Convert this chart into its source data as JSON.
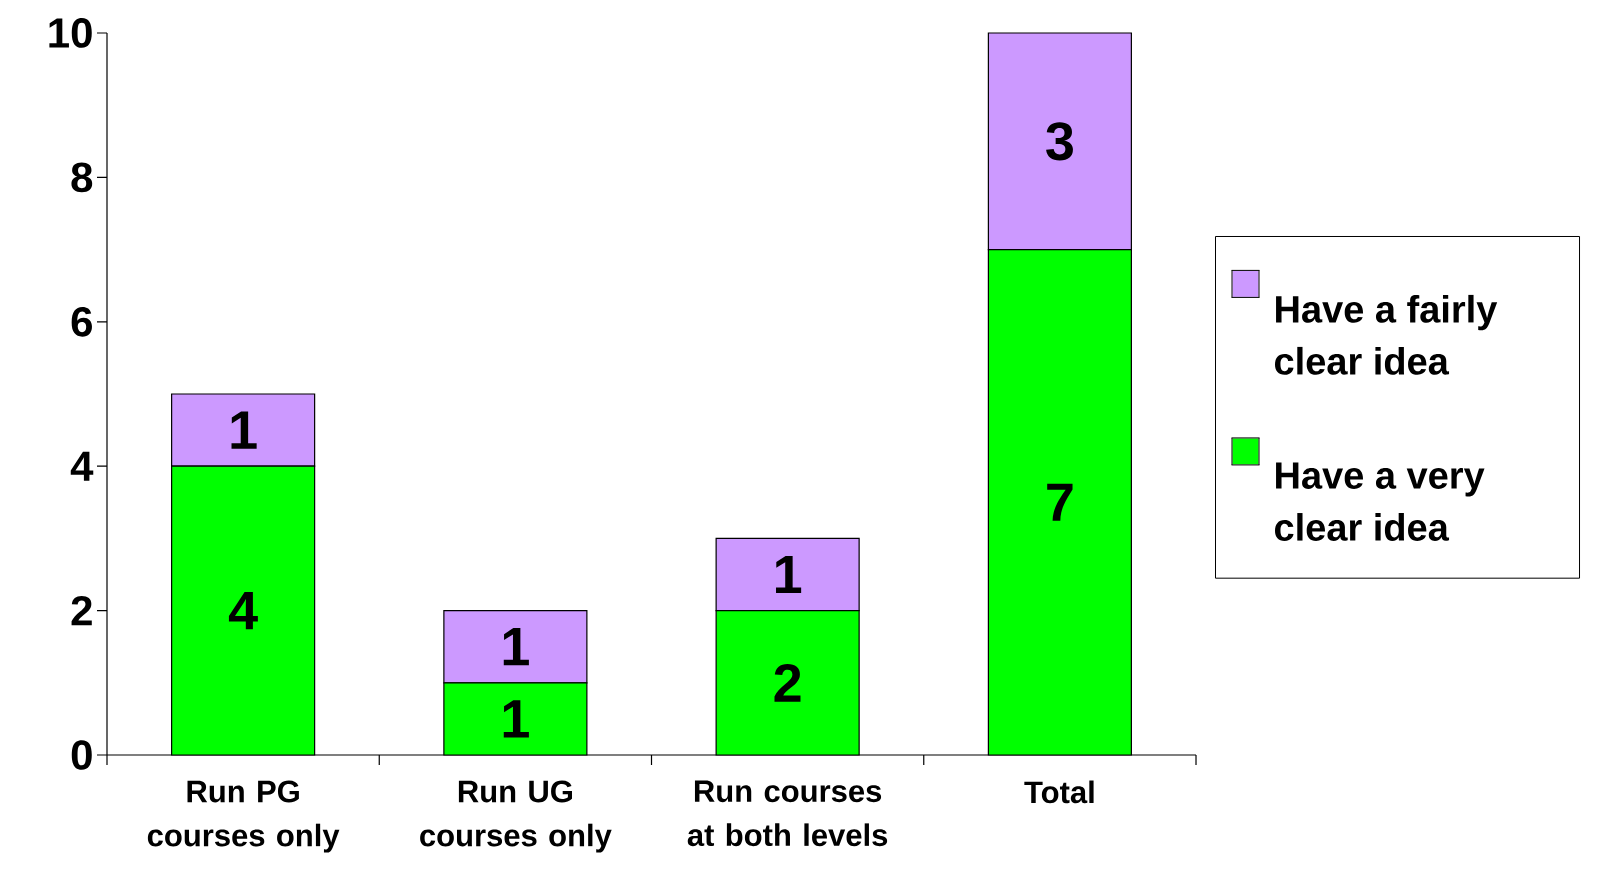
{
  "chart_data": {
    "type": "bar",
    "stacked": true,
    "categories": [
      "Run PG courses only",
      "Run UG courses only",
      "Run courses at both levels",
      "Total"
    ],
    "series": [
      {
        "name": "Have a very clear idea",
        "color": "#00ff00",
        "values": [
          4,
          1,
          2,
          7
        ]
      },
      {
        "name": "Have a fairly clear idea",
        "color": "#cc99ff",
        "values": [
          1,
          1,
          1,
          3
        ]
      }
    ],
    "ylim": [
      0,
      10
    ],
    "yticks": [
      0,
      2,
      4,
      6,
      8,
      10
    ],
    "data_labels": true,
    "legend": "right",
    "grid": false
  }
}
